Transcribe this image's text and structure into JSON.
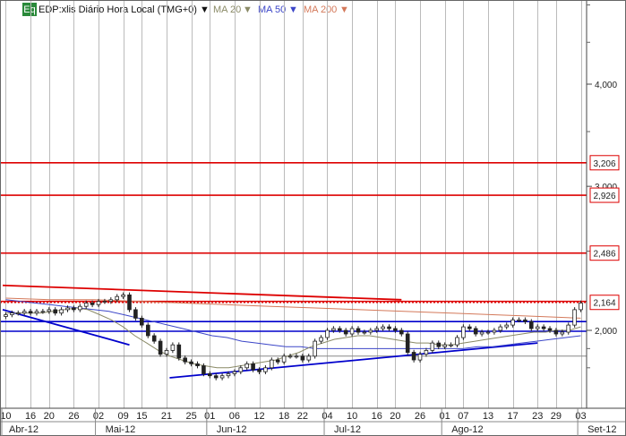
{
  "header": {
    "badge": "Eq",
    "symbol": "EDP:xlis Diário Hora Local (TMG+0)",
    "ma20": "MA 20",
    "ma50": "MA 50",
    "ma200": "MA 200"
  },
  "colors": {
    "candle": "#222222",
    "ma20": "#8a8a66",
    "ma50": "#3c46c8",
    "ma200": "#d4795a",
    "resistance": "#dd0000",
    "support": "#0000cc",
    "grid": "#bbbbbb",
    "badge": "#2a8a3a"
  },
  "chart_data": {
    "type": "candlestick",
    "y_scale": "log",
    "ylim": [
      1.75,
      7.0
    ],
    "y_ticks": [
      "4,000",
      "3,000",
      "2,000"
    ],
    "x_ticks": [
      "10",
      "16",
      "20",
      "26",
      "02",
      "09",
      "15",
      "21",
      "25",
      "01",
      "06",
      "12",
      "18",
      "22",
      "04",
      "10",
      "16",
      "20",
      "26",
      "01",
      "07",
      "13",
      "17",
      "23",
      "29",
      "03"
    ],
    "months": [
      "Abr-12",
      "Mai-12",
      "Jun-12",
      "Jul-12",
      "Ago-12",
      "Set-12"
    ],
    "price_labels": [
      "3,206",
      "2,926",
      "2,486",
      "2,164"
    ],
    "horizontal_lines": [
      {
        "value": 3.206,
        "color": "red",
        "style": "solid"
      },
      {
        "value": 2.926,
        "color": "red",
        "style": "solid"
      },
      {
        "value": 2.486,
        "color": "red",
        "style": "solid"
      },
      {
        "value": 2.17,
        "color": "red",
        "style": "solid"
      },
      {
        "value": 2.164,
        "color": "red",
        "style": "dotted"
      },
      {
        "value": 2.05,
        "color": "blue",
        "style": "solid"
      },
      {
        "value": 1.995,
        "color": "blue",
        "style": "solid"
      },
      {
        "value": 1.86,
        "color": "gray",
        "style": "solid"
      }
    ],
    "trend_lines": [
      {
        "color": "red",
        "from_close_index": 0,
        "from_value": 2.27,
        "to_close_index": 64,
        "to_value": 2.18
      },
      {
        "color": "blue",
        "from_close_index": 0,
        "from_value": 2.12,
        "to_close_index": 20,
        "to_value": 1.92
      },
      {
        "color": "blue",
        "from_close_index": 27,
        "from_value": 1.75,
        "to_close_index": 86,
        "to_value": 1.93
      }
    ],
    "closes": [
      2.09,
      2.1,
      2.1,
      2.11,
      2.1,
      2.11,
      2.11,
      2.12,
      2.1,
      2.12,
      2.13,
      2.12,
      2.14,
      2.16,
      2.15,
      2.17,
      2.17,
      2.18,
      2.2,
      2.21,
      2.12,
      2.07,
      2.03,
      1.97,
      1.94,
      1.87,
      1.89,
      1.92,
      1.85,
      1.83,
      1.82,
      1.81,
      1.77,
      1.76,
      1.75,
      1.76,
      1.77,
      1.78,
      1.8,
      1.82,
      1.79,
      1.78,
      1.8,
      1.84,
      1.83,
      1.86,
      1.86,
      1.86,
      1.84,
      1.86,
      1.94,
      1.96,
      2.0,
      2.01,
      2.0,
      1.98,
      2.01,
      1.99,
      1.99,
      2.0,
      2.01,
      2.02,
      2.01,
      2.0,
      1.98,
      1.88,
      1.84,
      1.87,
      1.89,
      1.93,
      1.91,
      1.92,
      1.92,
      1.96,
      2.02,
      2.01,
      1.98,
      1.99,
      1.99,
      2.0,
      2.02,
      2.03,
      2.06,
      2.06,
      2.05,
      2.01,
      2.02,
      2.01,
      2.0,
      1.98,
      1.99,
      2.03,
      2.12,
      2.16
    ],
    "ma20": [
      2.1,
      2.1,
      2.1,
      2.1,
      2.11,
      2.12,
      2.13,
      2.12,
      2.09,
      2.06,
      2.02,
      1.97,
      1.93,
      1.89,
      1.86,
      1.84,
      1.82,
      1.81,
      1.8,
      1.8,
      1.81,
      1.82,
      1.83,
      1.84,
      1.86,
      1.88,
      1.91,
      1.93,
      1.95,
      1.96,
      1.97,
      1.97,
      1.96,
      1.95,
      1.94,
      1.93,
      1.93,
      1.92,
      1.92,
      1.93,
      1.94,
      1.95,
      1.96,
      1.97,
      1.98,
      1.99,
      1.99,
      2.0,
      2.0,
      2.02
    ],
    "ma50": [
      2.18,
      2.17,
      2.16,
      2.15,
      2.14,
      2.13,
      2.12,
      2.11,
      2.09,
      2.07,
      2.05,
      2.03,
      2.01,
      1.99,
      1.97,
      1.96,
      1.94,
      1.93,
      1.92,
      1.91,
      1.91,
      1.9,
      1.9,
      1.9,
      1.9,
      1.9,
      1.9,
      1.9,
      1.9,
      1.9,
      1.9,
      1.9,
      1.91,
      1.91,
      1.92,
      1.93,
      1.94,
      1.95,
      1.96,
      1.97
    ],
    "ma200": [
      2.19,
      2.18,
      2.18,
      2.17,
      2.16,
      2.15,
      2.14,
      2.13,
      2.12,
      2.11,
      2.1,
      2.09,
      2.08,
      2.07
    ]
  }
}
